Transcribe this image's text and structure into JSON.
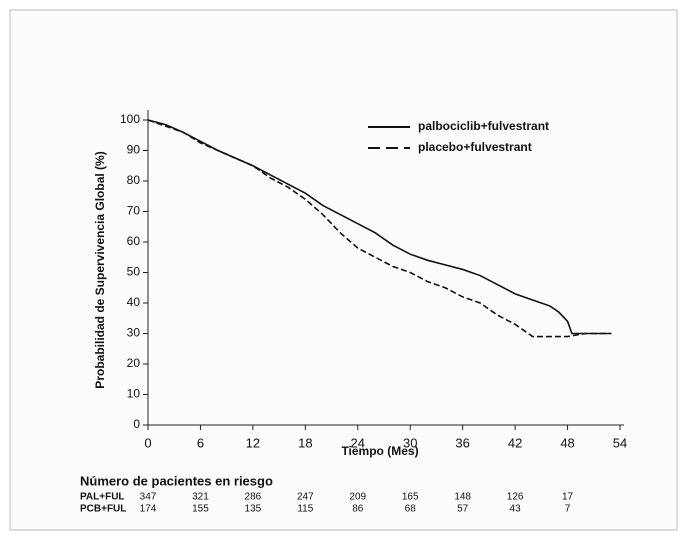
{
  "chart_data": {
    "type": "line",
    "ylabel": "Probabilidad de Supervivencia Global (%)",
    "xlabel": "Tiempo (Mes)",
    "xlim": [
      0,
      54
    ],
    "xticks": [
      0,
      6,
      12,
      18,
      24,
      30,
      36,
      42,
      48,
      54
    ],
    "ylim": [
      0,
      100
    ],
    "yticks": [
      0,
      10,
      20,
      30,
      40,
      50,
      60,
      70,
      80,
      90,
      100
    ],
    "legend": "top-right",
    "series": [
      {
        "name": "palbociclib+fulvestrant",
        "color": "#111111",
        "linestyle": "solid",
        "x": [
          0,
          2,
          4,
          6,
          8,
          10,
          12,
          14,
          16,
          18,
          20,
          22,
          24,
          26,
          28,
          30,
          32,
          34,
          36,
          38,
          40,
          42,
          44,
          46,
          47,
          48,
          48.5,
          50,
          53
        ],
        "values": [
          100,
          98.5,
          96,
          93,
          90,
          87.5,
          85,
          82,
          79,
          76,
          72,
          69,
          66,
          63,
          59,
          56,
          54,
          52.5,
          51,
          49,
          46,
          43,
          41,
          39,
          37,
          34,
          30,
          30,
          30
        ]
      },
      {
        "name": "placebo+fulvestrant",
        "color": "#111111",
        "linestyle": "dashed",
        "x": [
          0,
          2,
          4,
          6,
          8,
          10,
          12,
          14,
          16,
          18,
          20,
          22,
          24,
          26,
          28,
          30,
          32,
          34,
          36,
          38,
          40,
          42,
          43,
          44,
          46,
          48,
          50,
          53
        ],
        "values": [
          100,
          98,
          96,
          92.5,
          90,
          87.5,
          85,
          81,
          78,
          74,
          69,
          63,
          58,
          55,
          52,
          50,
          47,
          45,
          42,
          40,
          36,
          33,
          31,
          29,
          29,
          29,
          30,
          30
        ]
      }
    ],
    "risk_table": {
      "title": "Número de pacientes en riesgo",
      "rows": [
        {
          "label": "PAL+FUL",
          "values": [
            347,
            321,
            286,
            247,
            209,
            165,
            148,
            126,
            17
          ]
        },
        {
          "label": "PCB+FUL",
          "values": [
            174,
            155,
            135,
            115,
            86,
            68,
            57,
            43,
            7
          ]
        }
      ]
    }
  }
}
